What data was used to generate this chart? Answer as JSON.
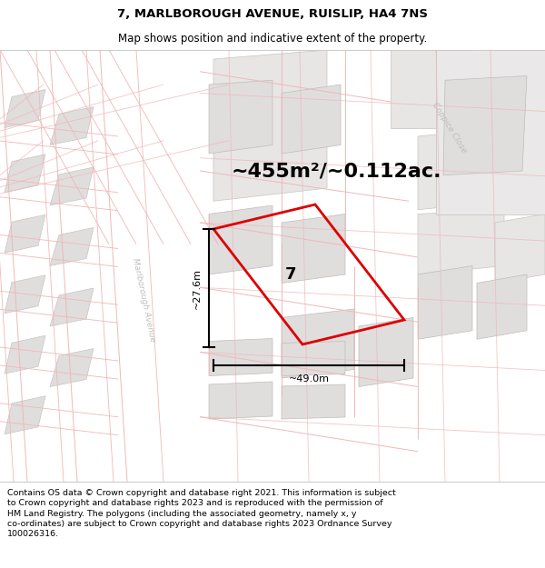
{
  "title_line1": "7, MARLBOROUGH AVENUE, RUISLIP, HA4 7NS",
  "title_line2": "Map shows position and indicative extent of the property.",
  "footer_text": "Contains OS data © Crown copyright and database right 2021. This information is subject to Crown copyright and database rights 2023 and is reproduced with the permission of HM Land Registry. The polygons (including the associated geometry, namely x, y co-ordinates) are subject to Crown copyright and database rights 2023 Ordnance Survey 100026316.",
  "area_text": "~455m²/~0.112ac.",
  "width_label": "~49.0m",
  "height_label": "~27.6m",
  "plot_number": "7",
  "bg_color": "#f5f3f3",
  "map_bg": "#f5f3f3",
  "road_color_light": "#f0b8b8",
  "block_color": "#e0dddd",
  "block_edge": "#c8c4c4",
  "red_plot_color": "#dd0000",
  "street_color": "#c0bcbc",
  "street_label_marb": "Marlborough Avenue",
  "street_label_copp": "Coppice Close",
  "title_fontsize": 9.5,
  "subtitle_fontsize": 8.5,
  "area_fontsize": 16,
  "plot_num_fontsize": 13,
  "measure_fontsize": 8,
  "footer_fontsize": 6.8
}
